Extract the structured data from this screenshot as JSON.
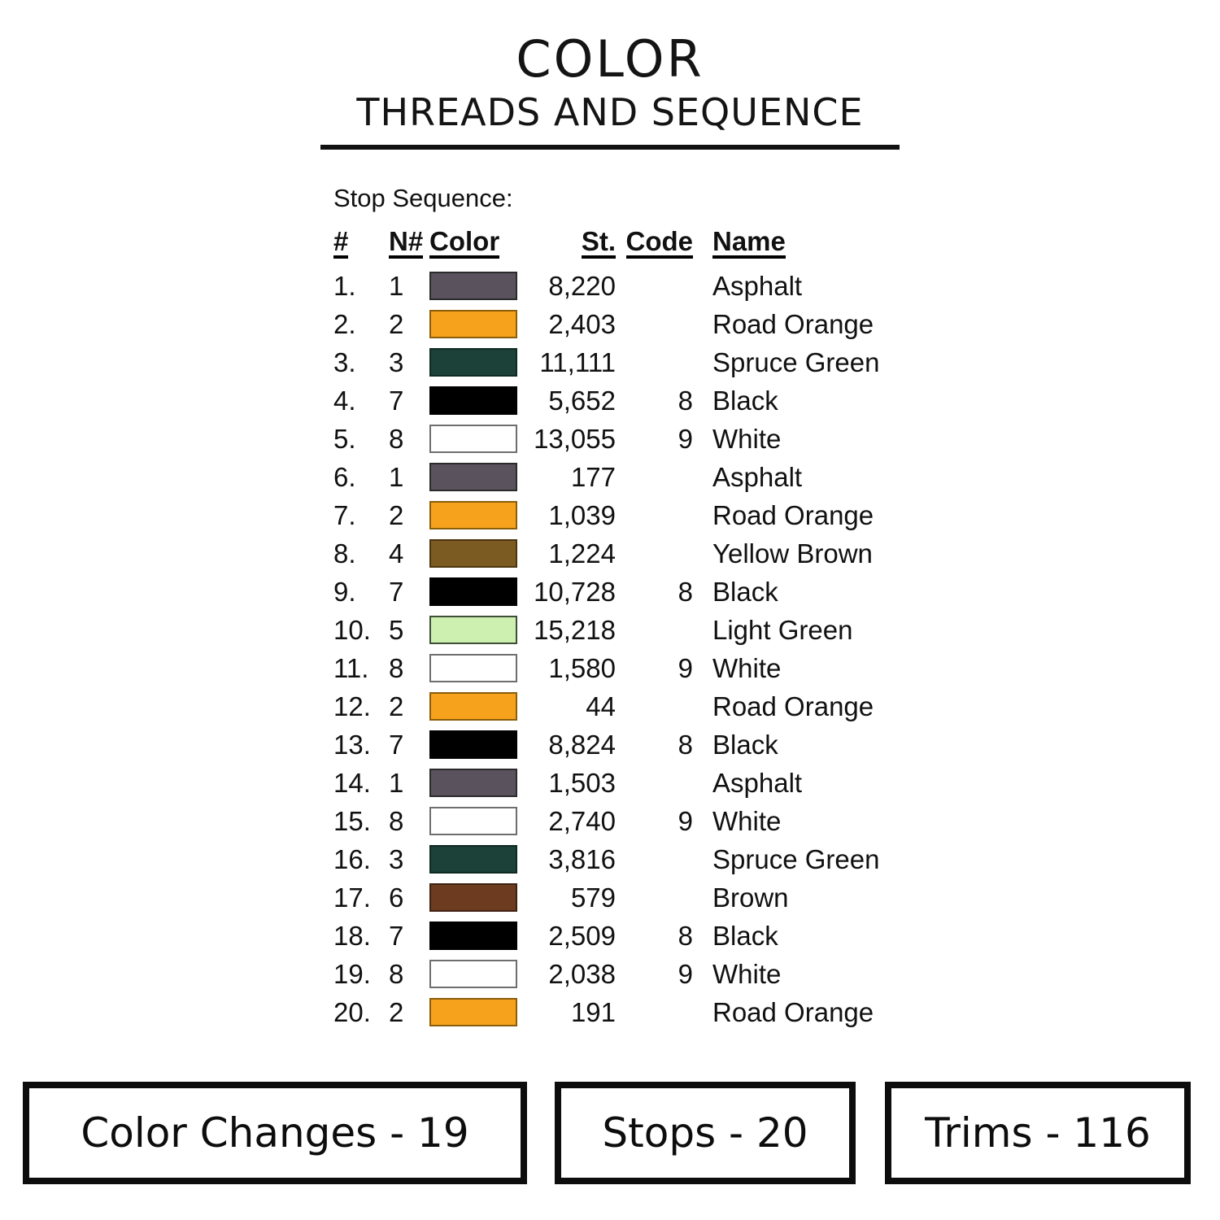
{
  "title": {
    "line1": "COLOR",
    "line2": "THREADS AND SEQUENCE"
  },
  "table": {
    "caption": "Stop Sequence:",
    "headers": [
      "#",
      "N#",
      "Color",
      "St.",
      "Code",
      "Name"
    ],
    "rows": [
      {
        "num": "1.",
        "n": "1",
        "swatch": "#5A525C",
        "swatch_border": "#2B2B2B",
        "st": "8,220",
        "code": "",
        "name": "Asphalt"
      },
      {
        "num": "2.",
        "n": "2",
        "swatch": "#F6A21D",
        "swatch_border": "#8B5E0A",
        "st": "2,403",
        "code": "",
        "name": "Road Orange"
      },
      {
        "num": "3.",
        "n": "3",
        "swatch": "#1C4138",
        "swatch_border": "#0F2A22",
        "st": "11,111",
        "code": "",
        "name": "Spruce Green"
      },
      {
        "num": "4.",
        "n": "7",
        "swatch": "#000000",
        "swatch_border": "#000000",
        "st": "5,652",
        "code": "8",
        "name": "Black"
      },
      {
        "num": "5.",
        "n": "8",
        "swatch": "#FFFFFF",
        "swatch_border": "#6E6E6E",
        "st": "13,055",
        "code": "9",
        "name": "White"
      },
      {
        "num": "6.",
        "n": "1",
        "swatch": "#5A525C",
        "swatch_border": "#2B2B2B",
        "st": "177",
        "code": "",
        "name": "Asphalt"
      },
      {
        "num": "7.",
        "n": "2",
        "swatch": "#F6A21D",
        "swatch_border": "#8B5E0A",
        "st": "1,039",
        "code": "",
        "name": "Road Orange"
      },
      {
        "num": "8.",
        "n": "4",
        "swatch": "#7B5B21",
        "swatch_border": "#4A3510",
        "st": "1,224",
        "code": "",
        "name": "Yellow Brown"
      },
      {
        "num": "9.",
        "n": "7",
        "swatch": "#000000",
        "swatch_border": "#000000",
        "st": "10,728",
        "code": "8",
        "name": "Black"
      },
      {
        "num": "10.",
        "n": "5",
        "swatch": "#CDEFAF",
        "swatch_border": "#3E4F37",
        "st": "15,218",
        "code": "",
        "name": "Light Green"
      },
      {
        "num": "11.",
        "n": "8",
        "swatch": "#FFFFFF",
        "swatch_border": "#6E6E6E",
        "st": "1,580",
        "code": "9",
        "name": "White"
      },
      {
        "num": "12.",
        "n": "2",
        "swatch": "#F6A21D",
        "swatch_border": "#8B5E0A",
        "st": "44",
        "code": "",
        "name": "Road Orange"
      },
      {
        "num": "13.",
        "n": "7",
        "swatch": "#000000",
        "swatch_border": "#000000",
        "st": "8,824",
        "code": "8",
        "name": "Black"
      },
      {
        "num": "14.",
        "n": "1",
        "swatch": "#5A525C",
        "swatch_border": "#2B2B2B",
        "st": "1,503",
        "code": "",
        "name": "Asphalt"
      },
      {
        "num": "15.",
        "n": "8",
        "swatch": "#FFFFFF",
        "swatch_border": "#6E6E6E",
        "st": "2,740",
        "code": "9",
        "name": "White"
      },
      {
        "num": "16.",
        "n": "3",
        "swatch": "#1C4138",
        "swatch_border": "#0F2A22",
        "st": "3,816",
        "code": "",
        "name": "Spruce Green"
      },
      {
        "num": "17.",
        "n": "6",
        "swatch": "#6C3B20",
        "swatch_border": "#3F2112",
        "st": "579",
        "code": "",
        "name": "Brown"
      },
      {
        "num": "18.",
        "n": "7",
        "swatch": "#000000",
        "swatch_border": "#000000",
        "st": "2,509",
        "code": "8",
        "name": "Black"
      },
      {
        "num": "19.",
        "n": "8",
        "swatch": "#FFFFFF",
        "swatch_border": "#6E6E6E",
        "st": "2,038",
        "code": "9",
        "name": "White"
      },
      {
        "num": "20.",
        "n": "2",
        "swatch": "#F6A21D",
        "swatch_border": "#8B5E0A",
        "st": "191",
        "code": "",
        "name": "Road Orange"
      }
    ]
  },
  "footer": {
    "boxes": [
      "Color Changes - 19",
      "Stops - 20",
      "Trims - 116"
    ]
  }
}
